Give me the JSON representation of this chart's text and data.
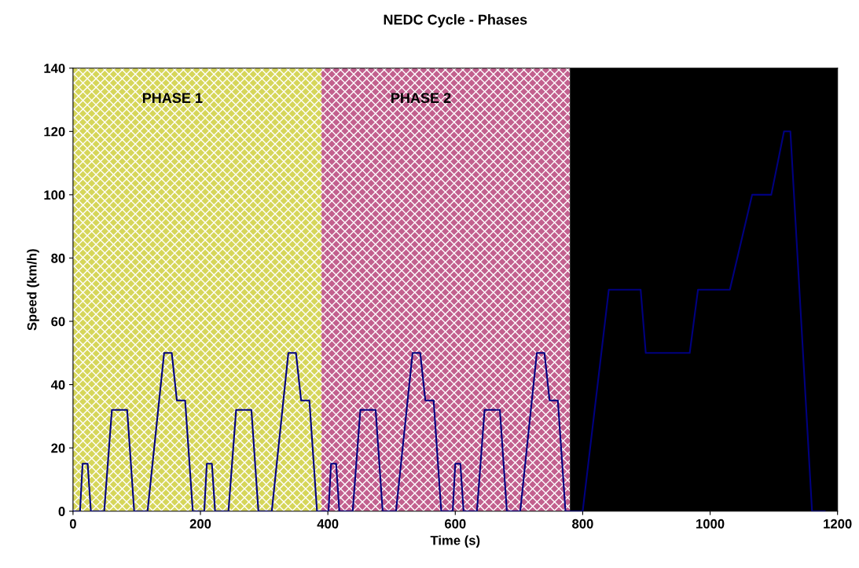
{
  "chart_data": {
    "type": "line",
    "title": "NEDC Cycle - Phases",
    "xlabel": "Time (s)",
    "ylabel": "Speed (km/h)",
    "series": [
      {
        "color": "#000080",
        "x": [
          0,
          11,
          15,
          23,
          28,
          49,
          61,
          85,
          96,
          117,
          143,
          155,
          163,
          176,
          188,
          195,
          206,
          210,
          218,
          223,
          244,
          256,
          280,
          291,
          312,
          338,
          350,
          358,
          371,
          383,
          390,
          401,
          405,
          413,
          418,
          439,
          451,
          475,
          486,
          507,
          533,
          545,
          553,
          566,
          578,
          585,
          596,
          600,
          608,
          613,
          634,
          646,
          670,
          681,
          702,
          728,
          740,
          748,
          761,
          773,
          780,
          800,
          841,
          891,
          899,
          968,
          981,
          1031,
          1066,
          1096,
          1116,
          1126,
          1160,
          1180
        ],
        "values": [
          0,
          0,
          15,
          15,
          0,
          0,
          32,
          32,
          0,
          0,
          50,
          50,
          35,
          35,
          0,
          0,
          0,
          15,
          15,
          0,
          0,
          32,
          32,
          0,
          0,
          50,
          50,
          35,
          35,
          0,
          0,
          0,
          15,
          15,
          0,
          0,
          32,
          32,
          0,
          0,
          50,
          50,
          35,
          35,
          0,
          0,
          0,
          15,
          15,
          0,
          0,
          32,
          32,
          0,
          0,
          50,
          50,
          35,
          35,
          0,
          0,
          0,
          70,
          70,
          50,
          50,
          70,
          70,
          100,
          100,
          120,
          120,
          0,
          0
        ]
      }
    ],
    "bands": [
      {
        "axis": "x",
        "from": 0,
        "to": 390,
        "label": "PHASE 1",
        "color": "#d6d65a"
      },
      {
        "axis": "x",
        "from": 390,
        "to": 780,
        "label": "PHASE 2",
        "color": "#c2608e"
      },
      {
        "axis": "x",
        "from": 780,
        "to": 1200,
        "label": null,
        "color": "#000000"
      }
    ],
    "xlim": [
      0,
      1200
    ],
    "xticks": [
      0,
      200,
      400,
      600,
      800,
      1000,
      1200
    ],
    "ylim": [
      0,
      140
    ],
    "yticks": [
      0,
      20,
      40,
      60,
      80,
      100,
      120,
      140
    ],
    "grid": false,
    "legend": false,
    "marker": "none",
    "line_style": "solid"
  }
}
